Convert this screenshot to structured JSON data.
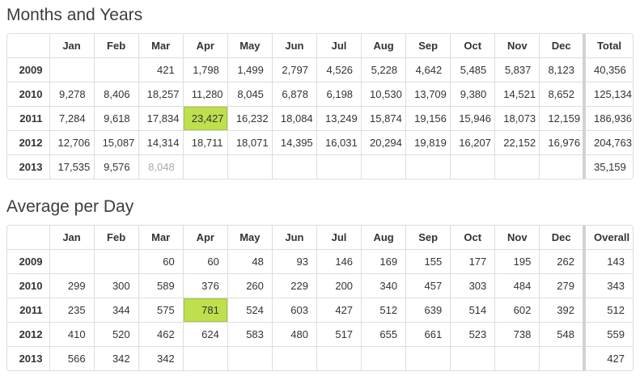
{
  "colors": {
    "highlight_bg": "#bee04d",
    "highlight_edge": "#a4c340",
    "table_border": "#dddddd",
    "last_col_separator": "#d2d2d2",
    "text": "#333333",
    "muted_text": "#a9a9a9",
    "title_text": "#3d3d3d"
  },
  "tables": [
    {
      "id": "months-and-years",
      "title": "Months and Years",
      "corner_label": "",
      "columns": [
        "Jan",
        "Feb",
        "Mar",
        "Apr",
        "May",
        "Jun",
        "Jul",
        "Aug",
        "Sep",
        "Oct",
        "Nov",
        "Dec"
      ],
      "last_column": "Total",
      "rows": [
        {
          "year": "2009",
          "values": [
            "",
            "",
            "421",
            "1,798",
            "1,499",
            "2,797",
            "4,526",
            "5,228",
            "4,642",
            "5,485",
            "5,837",
            "8,123"
          ],
          "last": "40,356"
        },
        {
          "year": "2010",
          "values": [
            "9,278",
            "8,406",
            "18,257",
            "11,280",
            "8,045",
            "6,878",
            "6,198",
            "10,530",
            "13,709",
            "9,380",
            "14,521",
            "8,652"
          ],
          "last": "125,134"
        },
        {
          "year": "2011",
          "values": [
            "7,284",
            "9,618",
            "17,834",
            "23,427",
            "16,232",
            "18,084",
            "13,249",
            "15,874",
            "19,156",
            "15,946",
            "18,073",
            "12,159"
          ],
          "last": "186,936"
        },
        {
          "year": "2012",
          "values": [
            "12,706",
            "15,087",
            "14,314",
            "18,711",
            "18,071",
            "14,395",
            "16,031",
            "20,294",
            "19,819",
            "16,207",
            "22,152",
            "16,976"
          ],
          "last": "204,763"
        },
        {
          "year": "2013",
          "values": [
            "17,535",
            "9,576",
            "8,048",
            "",
            "",
            "",
            "",
            "",
            "",
            "",
            "",
            ""
          ],
          "last": "35,159"
        }
      ],
      "highlight_cells": [
        {
          "row_index": 2,
          "col_index": 3
        }
      ],
      "muted_cells": [
        {
          "row_index": 4,
          "col_index": 2
        }
      ]
    },
    {
      "id": "average-per-day",
      "title": "Average per Day",
      "corner_label": "",
      "columns": [
        "Jan",
        "Feb",
        "Mar",
        "Apr",
        "May",
        "Jun",
        "Jul",
        "Aug",
        "Sep",
        "Oct",
        "Nov",
        "Dec"
      ],
      "last_column": "Overall",
      "rows": [
        {
          "year": "2009",
          "values": [
            "",
            "",
            "60",
            "60",
            "48",
            "93",
            "146",
            "169",
            "155",
            "177",
            "195",
            "262"
          ],
          "last": "143"
        },
        {
          "year": "2010",
          "values": [
            "299",
            "300",
            "589",
            "376",
            "260",
            "229",
            "200",
            "340",
            "457",
            "303",
            "484",
            "279"
          ],
          "last": "343"
        },
        {
          "year": "2011",
          "values": [
            "235",
            "344",
            "575",
            "781",
            "524",
            "603",
            "427",
            "512",
            "639",
            "514",
            "602",
            "392"
          ],
          "last": "512"
        },
        {
          "year": "2012",
          "values": [
            "410",
            "520",
            "462",
            "624",
            "583",
            "480",
            "517",
            "655",
            "661",
            "523",
            "738",
            "548"
          ],
          "last": "559"
        },
        {
          "year": "2013",
          "values": [
            "566",
            "342",
            "342",
            "",
            "",
            "",
            "",
            "",
            "",
            "",
            "",
            ""
          ],
          "last": "427"
        }
      ],
      "highlight_cells": [
        {
          "row_index": 2,
          "col_index": 3
        }
      ],
      "muted_cells": []
    }
  ]
}
